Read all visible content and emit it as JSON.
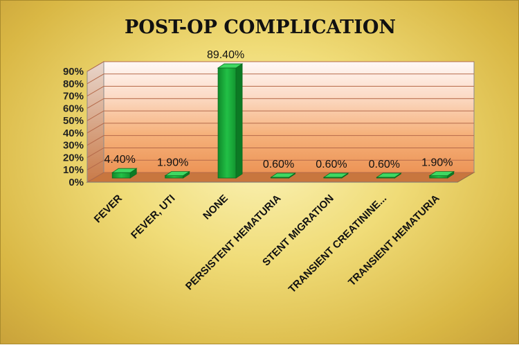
{
  "chart_data": {
    "type": "bar",
    "title": "POST-OP COMPLICATION",
    "xlabel": "",
    "ylabel": "",
    "ylim": [
      0,
      90
    ],
    "yticks": [
      "0%",
      "10%",
      "20%",
      "30%",
      "40%",
      "50%",
      "60%",
      "70%",
      "80%",
      "90%"
    ],
    "categories": [
      "FEVER",
      "FEVER, UTI",
      "NONE",
      "PERSISTENT HEMATURIA",
      "STENT MIGRATION",
      "TRANSIENT CREATININE...",
      "TRANSIENT HEMATURIA"
    ],
    "values": [
      4.4,
      1.9,
      89.4,
      0.6,
      0.6,
      0.6,
      1.9
    ],
    "data_labels": [
      "4.40%",
      "1.90%",
      "89.40%",
      "0.60%",
      "0.60%",
      "0.60%",
      "1.90%"
    ],
    "bar_color": "#1aa83a",
    "grid": true,
    "legend": "none"
  }
}
